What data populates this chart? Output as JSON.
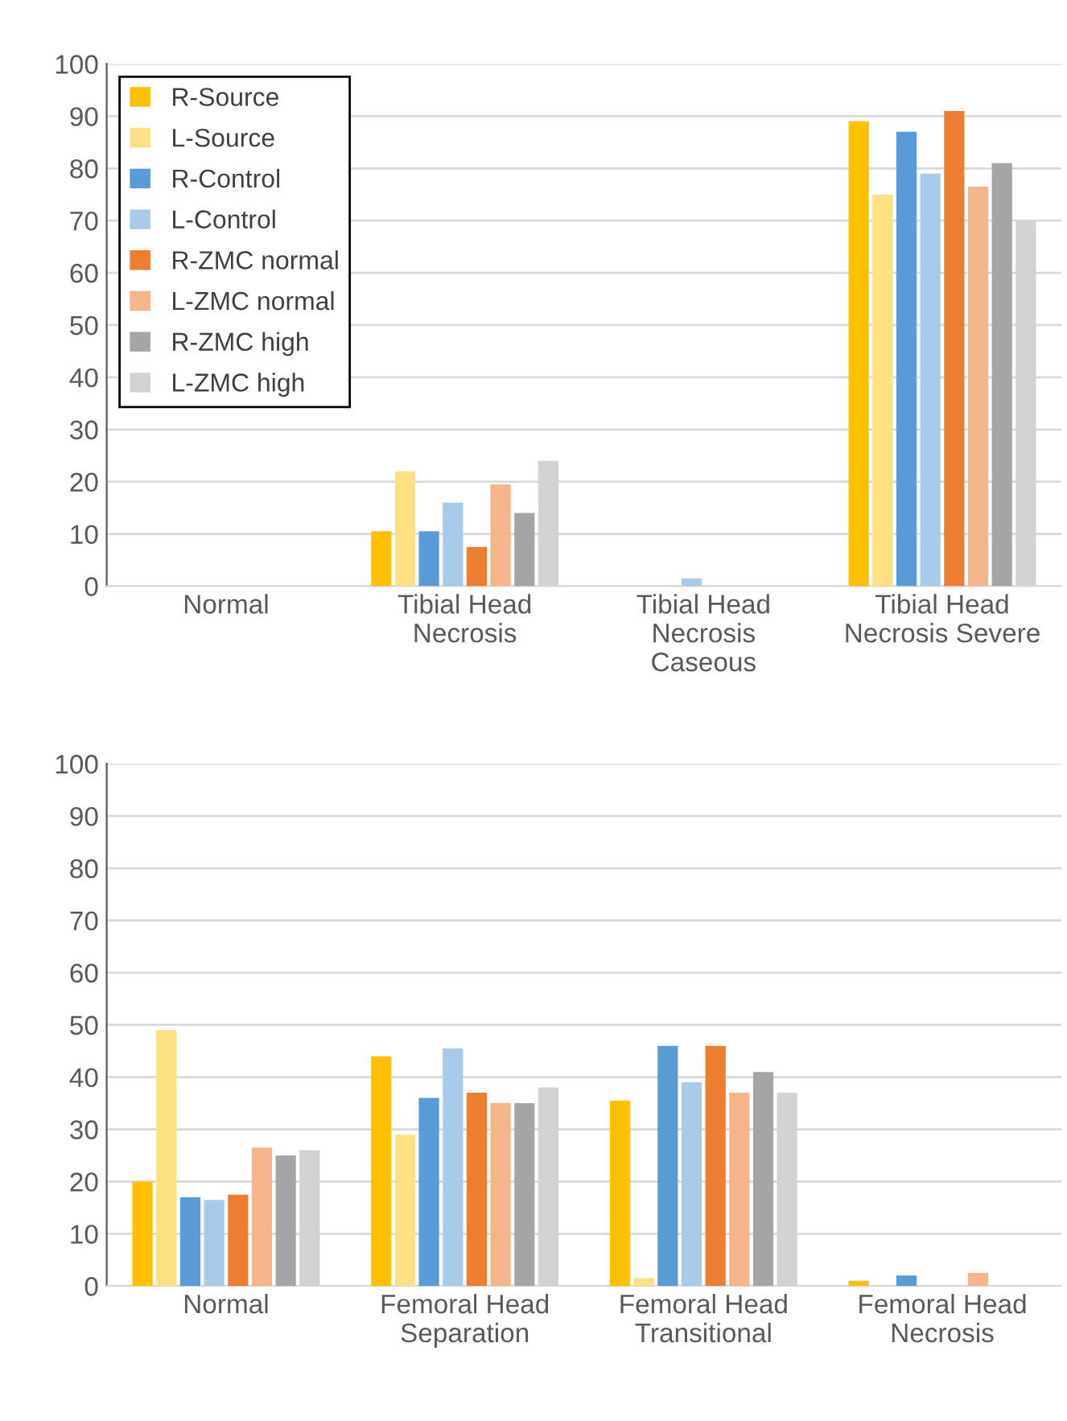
{
  "chart_data": [
    {
      "type": "bar",
      "categories": [
        "Normal",
        "Tibial Head\nNecrosis",
        "Tibial Head\nNecrosis\nCaseous",
        "Tibial Head\nNecrosis Severe"
      ],
      "ylim": [
        0,
        100
      ],
      "yticks": [
        0,
        10,
        20,
        30,
        40,
        50,
        60,
        70,
        80,
        90,
        100
      ],
      "grid": "y",
      "legend": "top left",
      "series": [
        {
          "name": "R-Source",
          "color": "#ffc000",
          "values": [
            0,
            10.5,
            0,
            89
          ]
        },
        {
          "name": "L-Source",
          "color": "#ffe083",
          "values": [
            0,
            22,
            0,
            75
          ]
        },
        {
          "name": "R-Control",
          "color": "#5b9bd5",
          "values": [
            0,
            10.5,
            0,
            87
          ]
        },
        {
          "name": "L-Control",
          "color": "#a9cbea",
          "values": [
            0,
            16,
            1.5,
            79
          ]
        },
        {
          "name": "R-ZMC normal",
          "color": "#ed7d31",
          "values": [
            0,
            7.5,
            0,
            91
          ]
        },
        {
          "name": "L-ZMC normal",
          "color": "#f5b48a",
          "values": [
            0,
            19.5,
            0,
            76.5
          ]
        },
        {
          "name": "R-ZMC high",
          "color": "#a5a5a5",
          "values": [
            0,
            14,
            0,
            81
          ]
        },
        {
          "name": "L-ZMC high",
          "color": "#d2d2d2",
          "values": [
            0,
            24,
            0,
            70
          ]
        }
      ]
    },
    {
      "type": "bar",
      "categories": [
        "Normal",
        "Femoral Head\nSeparation",
        "Femoral Head\nTransitional",
        "Femoral Head\nNecrosis"
      ],
      "ylim": [
        0,
        100
      ],
      "yticks": [
        0,
        10,
        20,
        30,
        40,
        50,
        60,
        70,
        80,
        90,
        100
      ],
      "grid": "y",
      "series": [
        {
          "color": "#ffc000",
          "values": [
            20,
            44,
            35.5,
            1
          ]
        },
        {
          "color": "#ffe083",
          "values": [
            49,
            29,
            1.5,
            0
          ]
        },
        {
          "color": "#5b9bd5",
          "values": [
            17,
            36,
            46,
            2
          ]
        },
        {
          "color": "#a9cbea",
          "values": [
            16.5,
            45.5,
            39,
            0
          ]
        },
        {
          "color": "#ed7d31",
          "values": [
            17.5,
            37,
            46,
            0
          ]
        },
        {
          "color": "#f5b48a",
          "values": [
            26.5,
            35,
            37,
            2.5
          ]
        },
        {
          "color": "#a5a5a5",
          "values": [
            25,
            35,
            41,
            0
          ]
        },
        {
          "color": "#d2d2d2",
          "values": [
            26,
            38,
            37,
            0
          ]
        }
      ]
    }
  ]
}
